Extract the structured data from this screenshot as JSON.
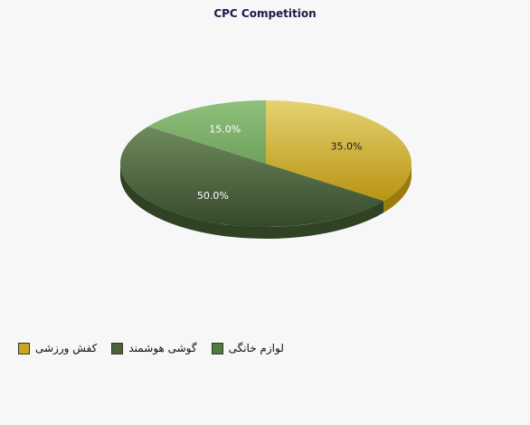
{
  "chart_data": {
    "type": "pie",
    "title": "CPC Competition",
    "slices": [
      {
        "label": "کفش ورزشی",
        "value": 35.0,
        "display": "35.0%",
        "color": "#c9a71c"
      },
      {
        "label": "گوشی هوشمند",
        "value": 50.0,
        "display": "50.0%",
        "color": "#4a6438"
      },
      {
        "label": "لوازم خانگی",
        "value": 15.0,
        "display": "15.0%",
        "color": "#5a8a4a"
      }
    ],
    "legend_position": "bottom-left",
    "style": "3d"
  }
}
